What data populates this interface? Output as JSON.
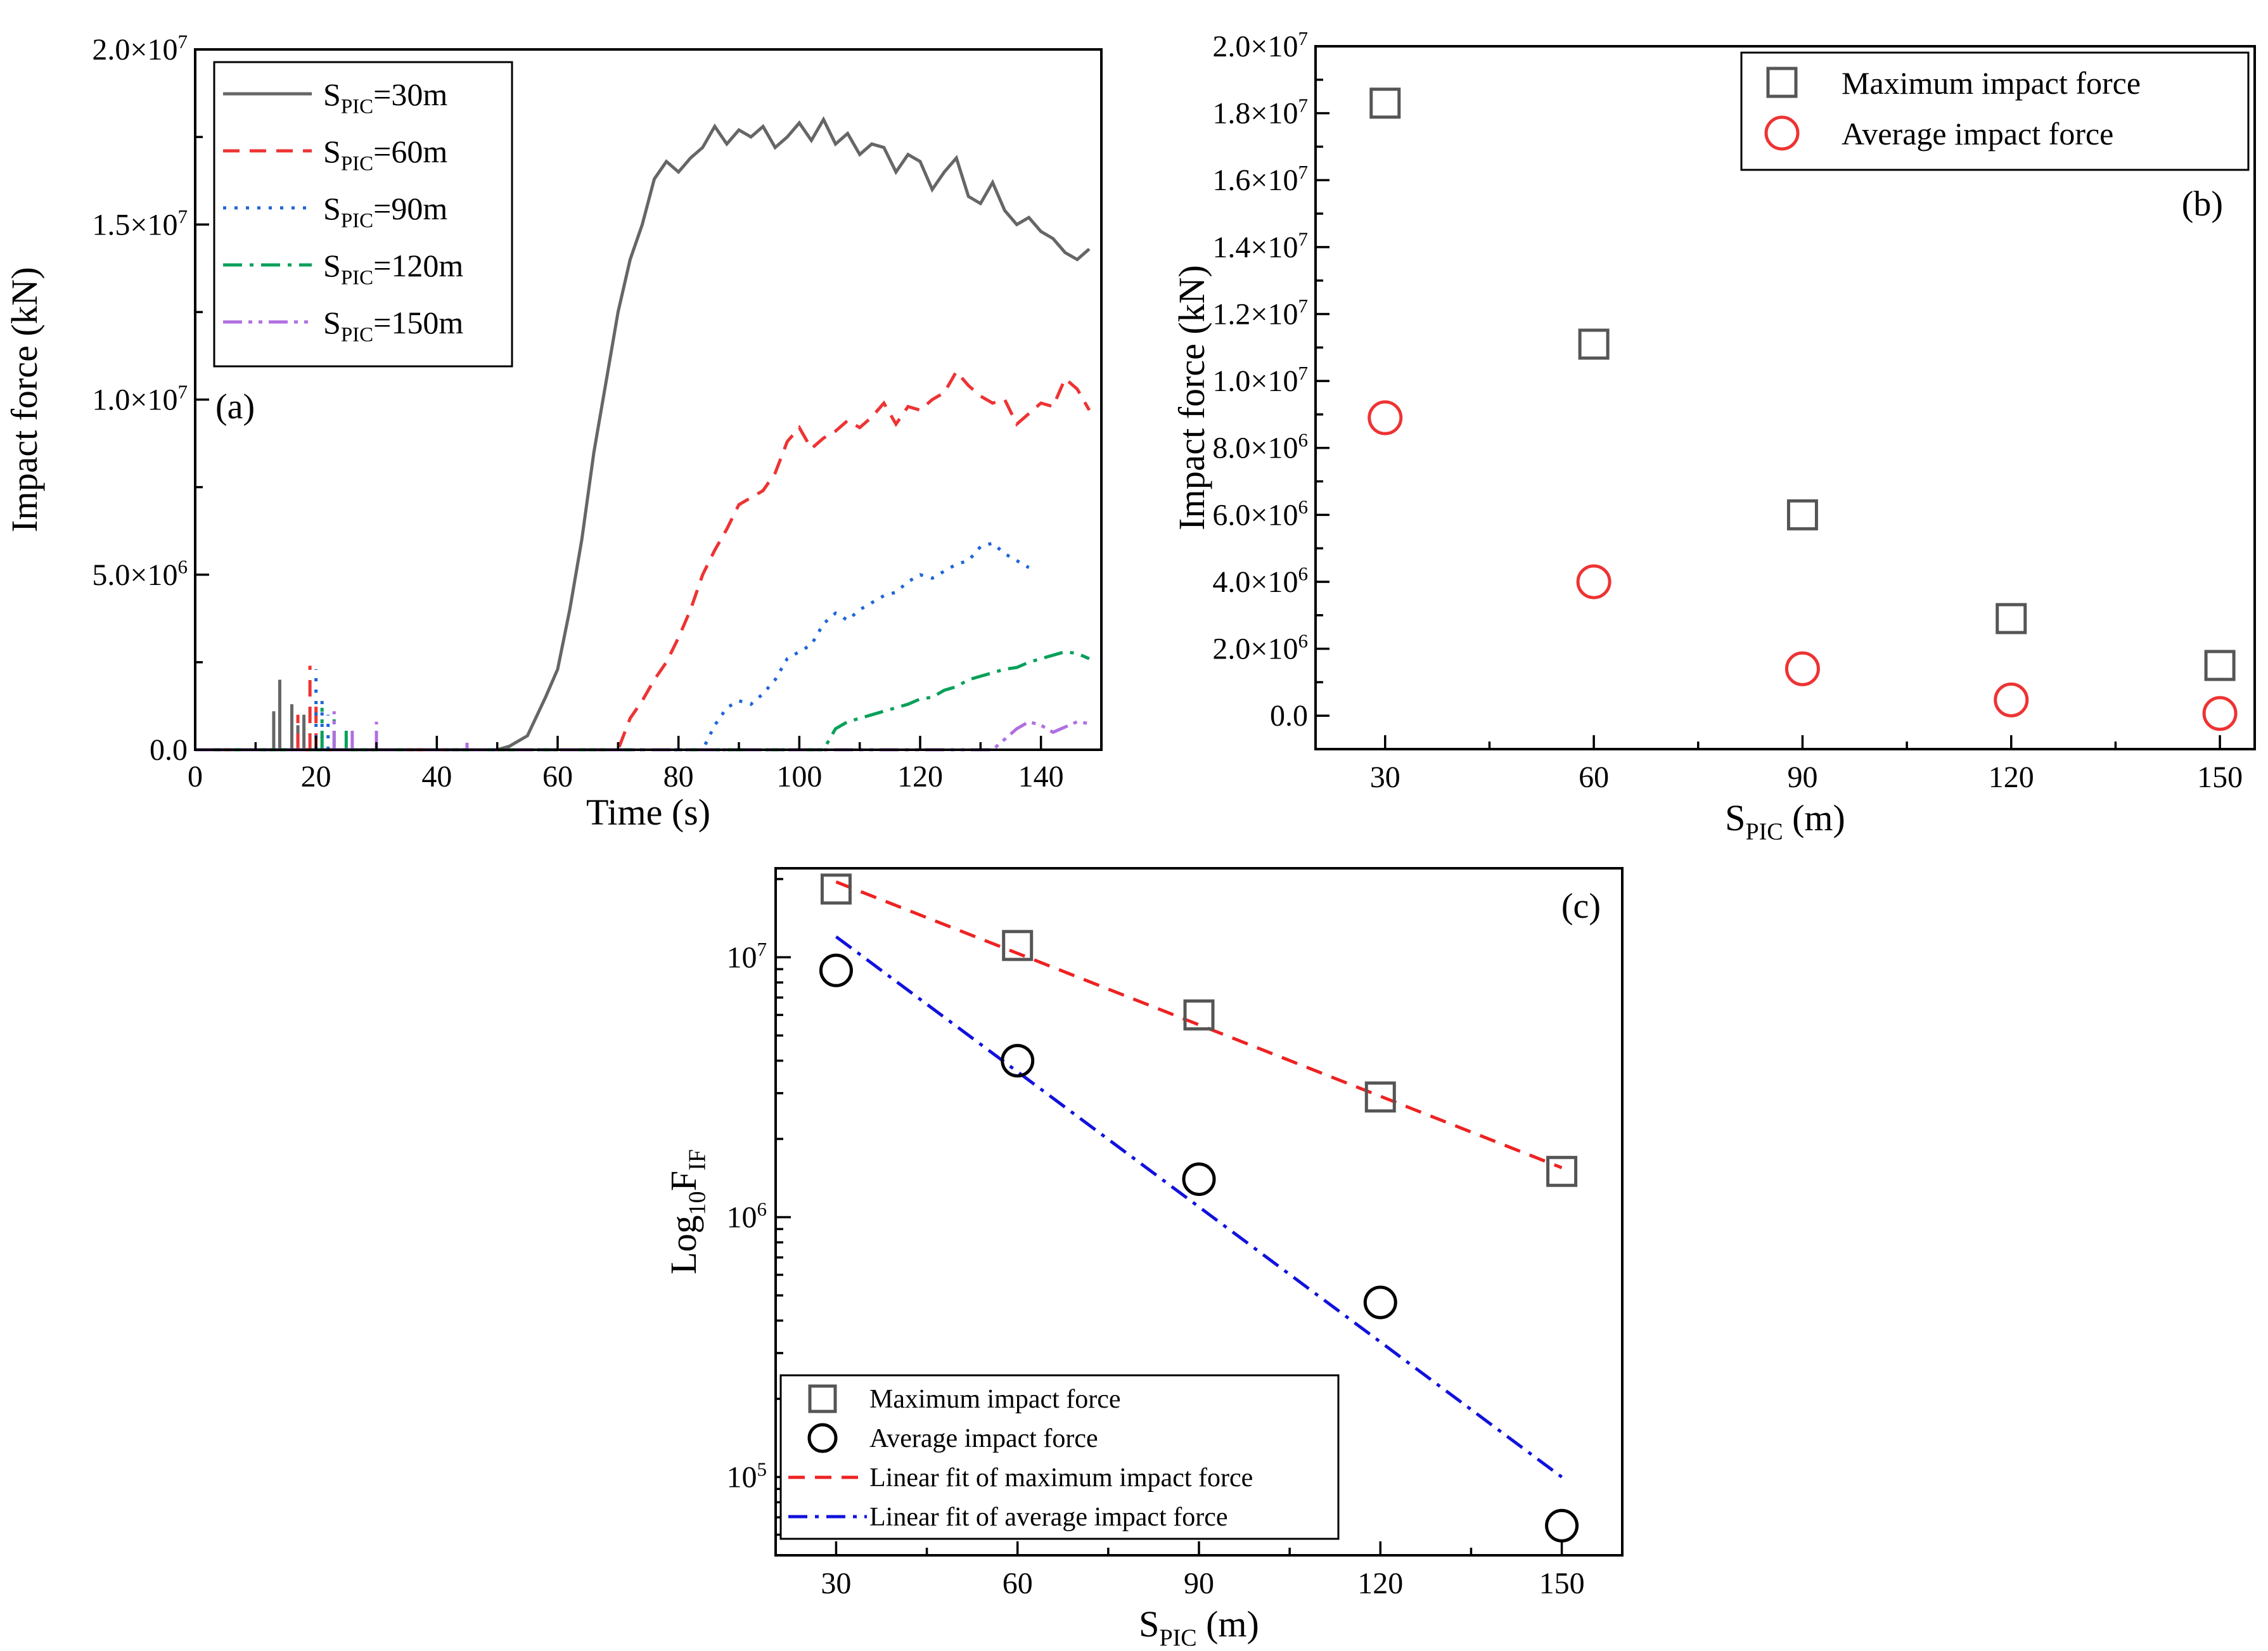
{
  "chart_data": [
    {
      "type": "line",
      "panel": "(a)",
      "xlabel": "Time (s)",
      "ylabel": "Impact force (kN)",
      "xlim": [
        0,
        150
      ],
      "ylim": [
        0,
        20000000
      ],
      "x_ticks": [
        "0",
        "20",
        "40",
        "60",
        "80",
        "100",
        "120",
        "140"
      ],
      "y_ticks": [
        {
          "mant": "0.0",
          "exp": ""
        },
        {
          "mant": "5.0×10",
          "exp": "6"
        },
        {
          "mant": "1.0×10",
          "exp": "7"
        },
        {
          "mant": "1.5×10",
          "exp": "7"
        },
        {
          "mant": "2.0×10",
          "exp": "7"
        }
      ],
      "legend_position": "top-left",
      "series": [
        {
          "name": "S",
          "sub": "PIC",
          "suffix": "=30m",
          "color": "#666666",
          "dash": "solid",
          "t_start": 50,
          "t_end": 148,
          "points": [
            [
              0,
              0
            ],
            [
              50,
              0
            ],
            [
              52,
              100000
            ],
            [
              55,
              400000
            ],
            [
              58,
              1500000
            ],
            [
              60,
              2300000
            ],
            [
              62,
              4000000
            ],
            [
              64,
              6000000
            ],
            [
              66,
              8500000
            ],
            [
              68,
              10500000
            ],
            [
              70,
              12500000
            ],
            [
              72,
              14000000
            ],
            [
              74,
              15000000
            ],
            [
              76,
              16300000
            ],
            [
              78,
              16800000
            ],
            [
              80,
              16500000
            ],
            [
              82,
              16900000
            ],
            [
              84,
              17200000
            ],
            [
              86,
              17800000
            ],
            [
              88,
              17300000
            ],
            [
              90,
              17700000
            ],
            [
              92,
              17500000
            ],
            [
              94,
              17800000
            ],
            [
              96,
              17200000
            ],
            [
              98,
              17500000
            ],
            [
              100,
              17900000
            ],
            [
              102,
              17400000
            ],
            [
              104,
              18000000
            ],
            [
              106,
              17300000
            ],
            [
              108,
              17600000
            ],
            [
              110,
              17000000
            ],
            [
              112,
              17300000
            ],
            [
              114,
              17200000
            ],
            [
              116,
              16500000
            ],
            [
              118,
              17000000
            ],
            [
              120,
              16800000
            ],
            [
              122,
              16000000
            ],
            [
              124,
              16500000
            ],
            [
              126,
              16900000
            ],
            [
              128,
              15800000
            ],
            [
              130,
              15600000
            ],
            [
              132,
              16200000
            ],
            [
              134,
              15400000
            ],
            [
              136,
              15000000
            ],
            [
              138,
              15200000
            ],
            [
              140,
              14800000
            ],
            [
              142,
              14600000
            ],
            [
              144,
              14200000
            ],
            [
              146,
              14000000
            ],
            [
              148,
              14300000
            ]
          ],
          "spikes": [
            [
              13,
              1100000
            ],
            [
              14,
              2000000
            ],
            [
              16,
              1300000
            ],
            [
              17,
              700000
            ],
            [
              18,
              1000000
            ]
          ]
        },
        {
          "name": "S",
          "sub": "PIC",
          "suffix": "=60m",
          "color": "#ee3333",
          "dash": "dashed",
          "points": [
            [
              0,
              0
            ],
            [
              70,
              0
            ],
            [
              72,
              900000
            ],
            [
              74,
              1400000
            ],
            [
              76,
              2000000
            ],
            [
              78,
              2500000
            ],
            [
              80,
              3200000
            ],
            [
              82,
              4000000
            ],
            [
              84,
              5000000
            ],
            [
              86,
              5700000
            ],
            [
              88,
              6300000
            ],
            [
              90,
              7000000
            ],
            [
              92,
              7200000
            ],
            [
              94,
              7400000
            ],
            [
              96,
              7900000
            ],
            [
              98,
              8800000
            ],
            [
              100,
              9200000
            ],
            [
              102,
              8600000
            ],
            [
              104,
              8900000
            ],
            [
              106,
              9100000
            ],
            [
              108,
              9400000
            ],
            [
              110,
              9200000
            ],
            [
              112,
              9500000
            ],
            [
              114,
              9900000
            ],
            [
              116,
              9300000
            ],
            [
              118,
              9800000
            ],
            [
              120,
              9700000
            ],
            [
              122,
              10000000
            ],
            [
              124,
              10200000
            ],
            [
              126,
              10800000
            ],
            [
              128,
              10400000
            ],
            [
              130,
              10100000
            ],
            [
              132,
              9900000
            ],
            [
              134,
              10000000
            ],
            [
              136,
              9300000
            ],
            [
              138,
              9600000
            ],
            [
              140,
              9900000
            ],
            [
              142,
              9800000
            ],
            [
              144,
              10600000
            ],
            [
              146,
              10300000
            ],
            [
              148,
              9700000
            ]
          ],
          "spikes": [
            [
              17,
              1000000
            ],
            [
              19,
              2400000
            ],
            [
              20,
              1300000
            ]
          ]
        },
        {
          "name": "S",
          "sub": "PIC",
          "suffix": "=90m",
          "color": "#1f66d6",
          "dash": "dotted",
          "points": [
            [
              0,
              0
            ],
            [
              84,
              0
            ],
            [
              86,
              700000
            ],
            [
              88,
              1200000
            ],
            [
              90,
              1400000
            ],
            [
              92,
              1300000
            ],
            [
              94,
              1600000
            ],
            [
              96,
              2000000
            ],
            [
              98,
              2600000
            ],
            [
              100,
              2800000
            ],
            [
              102,
              3000000
            ],
            [
              104,
              3600000
            ],
            [
              106,
              3900000
            ],
            [
              108,
              3700000
            ],
            [
              110,
              4000000
            ],
            [
              112,
              4200000
            ],
            [
              114,
              4400000
            ],
            [
              116,
              4500000
            ],
            [
              118,
              4800000
            ],
            [
              120,
              5000000
            ],
            [
              122,
              4900000
            ],
            [
              124,
              5100000
            ],
            [
              126,
              5300000
            ],
            [
              128,
              5400000
            ],
            [
              130,
              5800000
            ],
            [
              132,
              5900000
            ],
            [
              134,
              5600000
            ],
            [
              136,
              5400000
            ],
            [
              138,
              5200000
            ]
          ],
          "spikes": [
            [
              20,
              2300000
            ],
            [
              21,
              1500000
            ],
            [
              22,
              1000000
            ]
          ]
        },
        {
          "name": "S",
          "sub": "PIC",
          "suffix": "=120m",
          "color": "#0aa05a",
          "dash": "dashdot",
          "points": [
            [
              0,
              0
            ],
            [
              104,
              0
            ],
            [
              106,
              600000
            ],
            [
              108,
              800000
            ],
            [
              110,
              900000
            ],
            [
              112,
              1000000
            ],
            [
              114,
              1100000
            ],
            [
              116,
              1200000
            ],
            [
              118,
              1300000
            ],
            [
              120,
              1450000
            ],
            [
              122,
              1500000
            ],
            [
              124,
              1700000
            ],
            [
              126,
              1800000
            ],
            [
              128,
              2000000
            ],
            [
              130,
              2100000
            ],
            [
              132,
              2200000
            ],
            [
              134,
              2300000
            ],
            [
              136,
              2350000
            ],
            [
              138,
              2500000
            ],
            [
              140,
              2600000
            ],
            [
              142,
              2700000
            ],
            [
              144,
              2800000
            ],
            [
              146,
              2750000
            ],
            [
              148,
              2600000
            ]
          ],
          "spikes": [
            [
              21,
              1200000
            ],
            [
              23,
              900000
            ],
            [
              25,
              700000
            ]
          ]
        },
        {
          "name": "S",
          "sub": "PIC",
          "suffix": "=150m",
          "color": "#b06fe0",
          "dash": "dashdotdot",
          "points": [
            [
              0,
              0
            ],
            [
              132,
              0
            ],
            [
              134,
              300000
            ],
            [
              136,
              600000
            ],
            [
              138,
              800000
            ],
            [
              140,
              700000
            ],
            [
              142,
              500000
            ],
            [
              144,
              650000
            ],
            [
              146,
              800000
            ],
            [
              148,
              750000
            ]
          ],
          "spikes": [
            [
              23,
              1100000
            ],
            [
              26,
              600000
            ],
            [
              30,
              800000
            ],
            [
              45,
              200000
            ]
          ]
        }
      ]
    },
    {
      "type": "scatter",
      "panel": "(b)",
      "xlabel": "S",
      "xlabel_sub": "PIC",
      "xlabel_suffix": " (m)",
      "ylabel": "Impact force (kN)",
      "xlim": [
        20,
        155
      ],
      "ylim": [
        -1000000,
        20000000
      ],
      "x_ticks": [
        "30",
        "60",
        "90",
        "120",
        "150"
      ],
      "y_ticks": [
        {
          "mant": "0.0",
          "exp": ""
        },
        {
          "mant": "2.0×10",
          "exp": "6"
        },
        {
          "mant": "4.0×10",
          "exp": "6"
        },
        {
          "mant": "6.0×10",
          "exp": "6"
        },
        {
          "mant": "8.0×10",
          "exp": "6"
        },
        {
          "mant": "1.0×10",
          "exp": "7"
        },
        {
          "mant": "1.2×10",
          "exp": "7"
        },
        {
          "mant": "1.4×10",
          "exp": "7"
        },
        {
          "mant": "1.6×10",
          "exp": "7"
        },
        {
          "mant": "1.8×10",
          "exp": "7"
        },
        {
          "mant": "2.0×10",
          "exp": "7"
        }
      ],
      "legend_position": "top-right",
      "series": [
        {
          "name": "Maximum impact force",
          "marker": "square",
          "color": "#555555",
          "x": [
            30,
            60,
            90,
            120,
            150
          ],
          "y": [
            18300000,
            11100000,
            6000000,
            2900000,
            1500000
          ]
        },
        {
          "name": "Average impact force",
          "marker": "circle",
          "color": "#ee3333",
          "x": [
            30,
            60,
            90,
            120,
            150
          ],
          "y": [
            8900000,
            4000000,
            1400000,
            470000,
            65000
          ]
        }
      ]
    },
    {
      "type": "scatter",
      "panel": "(c)",
      "xlabel": "S",
      "xlabel_sub": "PIC",
      "xlabel_suffix": " (m)",
      "ylabel": "Log",
      "ylabel_sub1": "10",
      "ylabel_mid": "F",
      "ylabel_sub2": "IF",
      "yscale": "log",
      "xlim": [
        20,
        160
      ],
      "ylim": [
        50000,
        22000000
      ],
      "x_ticks": [
        "30",
        "60",
        "90",
        "120",
        "150"
      ],
      "y_ticks": [
        {
          "mant": "10",
          "exp": "5"
        },
        {
          "mant": "10",
          "exp": "6"
        },
        {
          "mant": "10",
          "exp": "7"
        }
      ],
      "legend_position": "bottom-left",
      "series": [
        {
          "name": "Maximum impact force",
          "marker": "square",
          "color": "#555555",
          "x": [
            30,
            60,
            90,
            120,
            150
          ],
          "y": [
            18300000,
            11100000,
            6000000,
            2900000,
            1500000
          ]
        },
        {
          "name": "Average impact force",
          "marker": "circle",
          "color": "#000000",
          "x": [
            30,
            60,
            90,
            120,
            150
          ],
          "y": [
            8900000,
            4000000,
            1400000,
            470000,
            65000
          ]
        },
        {
          "name": "Linear fit of maximum impact force",
          "line": "dashed",
          "color": "#ee2222",
          "x": [
            30,
            150
          ],
          "y": [
            19500000,
            1550000
          ]
        },
        {
          "name": "Linear fit of average impact force",
          "line": "dashdot",
          "color": "#1111dd",
          "x": [
            30,
            150
          ],
          "y": [
            12000000,
            100000
          ]
        }
      ]
    }
  ]
}
